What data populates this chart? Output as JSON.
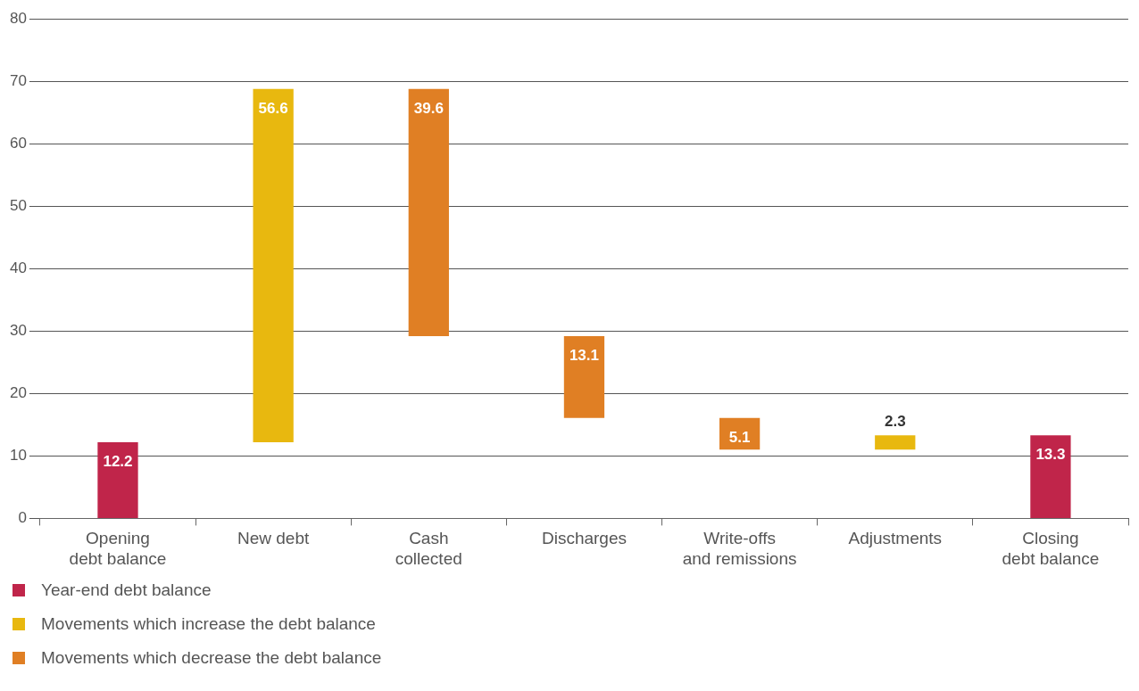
{
  "chart_data": {
    "type": "bar",
    "categories": [
      "Opening debt balance",
      "New debt",
      "Cash collected",
      "Discharges",
      "Write-offs and remissions",
      "Adjustments",
      "Closing debt balance"
    ],
    "series": [
      {
        "name": "Year-end debt balance",
        "color": "#c0254a",
        "values": [
          12.2,
          null,
          null,
          null,
          null,
          null,
          13.3
        ]
      },
      {
        "name": "Movements which increase the debt balance",
        "color": "#e8b80f",
        "values": [
          null,
          56.6,
          null,
          null,
          null,
          2.3,
          null
        ],
        "base": [
          null,
          12.2,
          null,
          null,
          null,
          11.0,
          null
        ]
      },
      {
        "name": "Movements which decrease the debt balance",
        "color": "#e07f24",
        "values": [
          null,
          null,
          39.6,
          13.1,
          5.1,
          null,
          null
        ],
        "base": [
          null,
          null,
          29.2,
          16.1,
          11.0,
          null,
          null
        ]
      }
    ],
    "ylim": [
      0,
      80
    ],
    "yticks": [
      0,
      10,
      20,
      30,
      40,
      50,
      60,
      70,
      80
    ],
    "grid": "y",
    "legend": "bottom",
    "data_labels": true
  }
}
